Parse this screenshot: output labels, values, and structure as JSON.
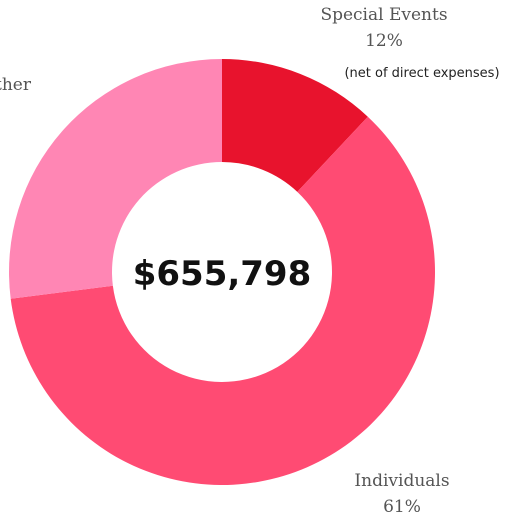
{
  "chart_data": {
    "type": "donut",
    "categories": [
      "Special Events",
      "Individuals",
      "Other"
    ],
    "values": [
      12,
      61,
      27
    ],
    "value_labels": [
      "12%",
      "61%",
      null
    ],
    "colors": [
      "#e8132d",
      "#ff4b73",
      "#ff86b4"
    ],
    "center_label": "$655,798",
    "annotation": "(net of direct expenses)"
  }
}
